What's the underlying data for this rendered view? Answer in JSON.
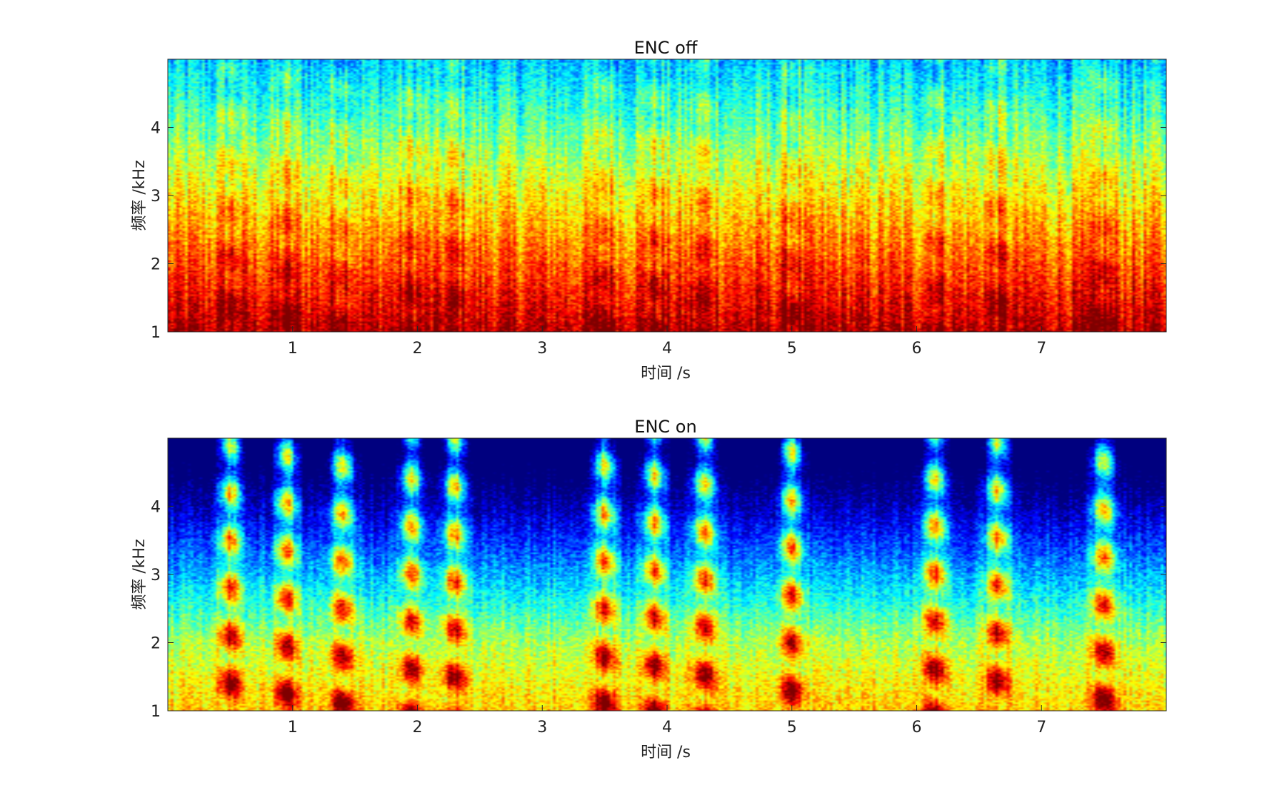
{
  "chart_data": [
    {
      "type": "heatmap",
      "title": "ENC off",
      "xlabel": "时间 /s",
      "ylabel": "频率 /kHz",
      "xlim": [
        0,
        8
      ],
      "ylim": [
        1,
        5
      ],
      "xticks": [
        1,
        2,
        3,
        4,
        5,
        6,
        7
      ],
      "yticks": [
        1,
        2,
        3,
        4
      ],
      "colormap": "jet",
      "noise_floor": "high",
      "speech_bursts_s": [
        0.5,
        0.95,
        1.4,
        1.95,
        2.3,
        3.5,
        3.9,
        4.3,
        5.0,
        6.15,
        6.65,
        7.5
      ]
    },
    {
      "type": "heatmap",
      "title": "ENC on",
      "xlabel": "时间 /s",
      "ylabel": "频率 /kHz",
      "xlim": [
        0,
        8
      ],
      "ylim": [
        1,
        5
      ],
      "xticks": [
        1,
        2,
        3,
        4,
        5,
        6,
        7
      ],
      "yticks": [
        1,
        2,
        3,
        4
      ],
      "colormap": "jet",
      "noise_floor": "low",
      "speech_bursts_s": [
        0.5,
        0.95,
        1.4,
        1.95,
        2.3,
        3.5,
        3.9,
        4.3,
        5.0,
        6.15,
        6.65,
        7.5
      ]
    }
  ],
  "colors": {
    "axes": "#262626",
    "text": "#222222",
    "background": "#ffffff"
  }
}
